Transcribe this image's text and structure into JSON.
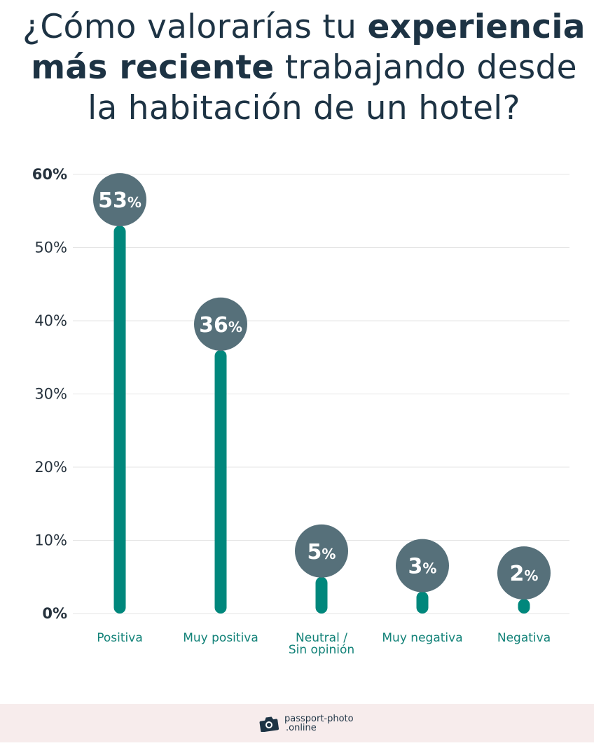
{
  "title": {
    "part1": "¿Cómo valorarías tu ",
    "bold1": "experiencia más reciente",
    "part2": " trabajando desde la habitación de un hotel?"
  },
  "chart_data": {
    "type": "bar",
    "title": "¿Cómo valorarías tu experiencia más reciente trabajando desde la habitación de un hotel?",
    "categories": [
      "Positiva",
      "Muy positiva",
      "Neutral / Sin opinión",
      "Muy negativa",
      "Negativa"
    ],
    "category_lines": [
      [
        "Positiva"
      ],
      [
        "Muy positiva"
      ],
      [
        "Neutral /",
        "Sin opinión"
      ],
      [
        "Muy negativa"
      ],
      [
        "Negativa"
      ]
    ],
    "values": [
      53,
      36,
      5,
      3,
      2
    ],
    "value_labels": [
      "53",
      "36",
      "5",
      "3",
      "2"
    ],
    "value_suffix": "%",
    "yticks": [
      "0%",
      "10%",
      "20%",
      "30%",
      "40%",
      "50%",
      "60%"
    ],
    "ylim": [
      0,
      60
    ],
    "grid": true,
    "colors": {
      "bar": "#00877c",
      "bubble": "#56707a",
      "category_text": "#128278",
      "grid": "#e4e4e4"
    }
  },
  "footer": {
    "brand_line1": "passport-photo",
    "brand_line2": ".online",
    "icon": "camera-icon",
    "background": "#f7ecec"
  }
}
